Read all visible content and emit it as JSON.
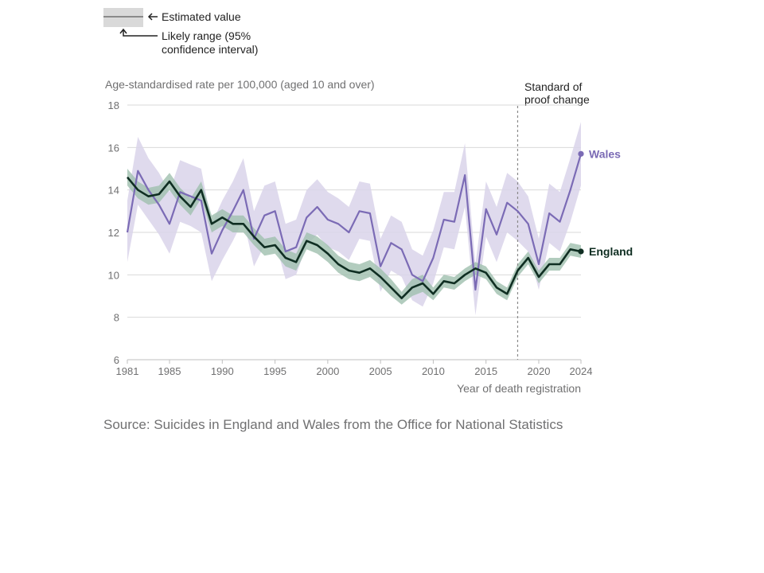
{
  "legend": {
    "estimate_label": "Estimated value",
    "range_label_line1": "Likely range (95%",
    "range_label_line2": "confidence interval)"
  },
  "annotation": {
    "line1": "Standard of",
    "line2": "proof change",
    "year": 2018
  },
  "source": "Source: Suicides in England and Wales from the Office for National Statistics",
  "colors": {
    "wales_line": "#7b6bb5",
    "wales_band": "#d9d3ea",
    "england_line": "#0f2e22",
    "england_band": "#9fbfae",
    "grid": "#d9d9d9",
    "annotation_line": "#8a8a8a"
  },
  "chart_data": {
    "type": "line",
    "ylabel": "Age-standardised rate per 100,000 (aged 10 and over)",
    "xlabel": "Year of death registration",
    "ylim": [
      6,
      18
    ],
    "yticks": [
      6,
      8,
      10,
      12,
      14,
      16,
      18
    ],
    "xlim": [
      1981,
      2024
    ],
    "xticks": [
      1981,
      1985,
      1990,
      1995,
      2000,
      2005,
      2010,
      2015,
      2020,
      2024
    ],
    "grid": true,
    "x": [
      1981,
      1982,
      1983,
      1984,
      1985,
      1986,
      1987,
      1988,
      1989,
      1990,
      1991,
      1992,
      1993,
      1994,
      1995,
      1996,
      1997,
      1998,
      1999,
      2000,
      2001,
      2002,
      2003,
      2004,
      2005,
      2006,
      2007,
      2008,
      2009,
      2010,
      2011,
      2012,
      2013,
      2014,
      2015,
      2016,
      2017,
      2018,
      2019,
      2020,
      2021,
      2022,
      2023,
      2024
    ],
    "series": [
      {
        "name": "Wales",
        "values": [
          12.0,
          14.9,
          14.0,
          13.3,
          12.4,
          13.9,
          13.7,
          13.5,
          11.0,
          12.1,
          13.0,
          14.0,
          11.7,
          12.8,
          13.0,
          11.1,
          11.3,
          12.7,
          13.2,
          12.6,
          12.4,
          12.0,
          13.0,
          12.9,
          10.4,
          11.5,
          11.2,
          10.0,
          9.7,
          10.8,
          12.6,
          12.5,
          14.7,
          9.3,
          13.1,
          11.9,
          13.4,
          13.0,
          12.4,
          10.5,
          12.9,
          12.5,
          14.0,
          15.7
        ],
        "lower": [
          10.6,
          13.3,
          12.6,
          11.9,
          11.0,
          12.5,
          12.3,
          12.0,
          9.7,
          10.7,
          11.6,
          12.6,
          10.4,
          11.4,
          11.6,
          9.8,
          10.0,
          11.4,
          11.9,
          11.3,
          11.1,
          10.7,
          11.7,
          11.6,
          9.2,
          10.2,
          9.9,
          8.8,
          8.5,
          9.6,
          11.3,
          11.2,
          13.2,
          8.1,
          11.8,
          10.6,
          12.0,
          11.6,
          11.1,
          9.3,
          11.5,
          11.1,
          12.5,
          14.2
        ],
        "upper": [
          13.5,
          16.5,
          15.5,
          14.8,
          13.9,
          15.4,
          15.2,
          15.0,
          12.4,
          13.5,
          14.4,
          15.5,
          13.0,
          14.2,
          14.4,
          12.4,
          12.6,
          14.0,
          14.5,
          13.9,
          13.6,
          13.2,
          14.4,
          14.3,
          11.7,
          12.8,
          12.5,
          11.2,
          10.9,
          12.1,
          13.9,
          13.9,
          16.2,
          10.5,
          14.4,
          13.2,
          14.8,
          14.4,
          13.7,
          11.7,
          14.3,
          13.9,
          15.5,
          17.2
        ],
        "end_label": "Wales"
      },
      {
        "name": "England",
        "values": [
          14.6,
          14.0,
          13.7,
          13.8,
          14.4,
          13.7,
          13.2,
          14.0,
          12.4,
          12.7,
          12.4,
          12.4,
          11.8,
          11.3,
          11.4,
          10.8,
          10.6,
          11.6,
          11.4,
          11.0,
          10.5,
          10.2,
          10.1,
          10.3,
          9.9,
          9.4,
          8.9,
          9.4,
          9.6,
          9.1,
          9.7,
          9.6,
          10.0,
          10.3,
          10.1,
          9.4,
          9.1,
          10.2,
          10.8,
          9.9,
          10.5,
          10.5,
          11.2,
          11.1
        ],
        "lower": [
          14.2,
          13.6,
          13.3,
          13.4,
          14.0,
          13.3,
          12.8,
          13.6,
          12.0,
          12.3,
          12.0,
          12.0,
          11.4,
          10.9,
          11.0,
          10.4,
          10.2,
          11.2,
          11.0,
          10.6,
          10.1,
          9.8,
          9.7,
          9.9,
          9.5,
          9.0,
          8.6,
          9.0,
          9.2,
          8.8,
          9.4,
          9.3,
          9.7,
          10.0,
          9.8,
          9.1,
          8.8,
          9.9,
          10.5,
          9.6,
          10.2,
          10.2,
          10.9,
          10.8
        ],
        "upper": [
          15.0,
          14.4,
          14.1,
          14.2,
          14.8,
          14.1,
          13.6,
          14.4,
          12.8,
          13.1,
          12.8,
          12.8,
          12.2,
          11.7,
          11.8,
          11.2,
          11.0,
          12.0,
          11.8,
          11.4,
          10.9,
          10.6,
          10.5,
          10.7,
          10.3,
          9.8,
          9.2,
          9.8,
          10.0,
          9.4,
          10.0,
          9.9,
          10.3,
          10.6,
          10.4,
          9.7,
          9.4,
          10.5,
          11.1,
          10.2,
          10.8,
          10.8,
          11.5,
          11.4
        ],
        "end_label": "England"
      }
    ]
  }
}
